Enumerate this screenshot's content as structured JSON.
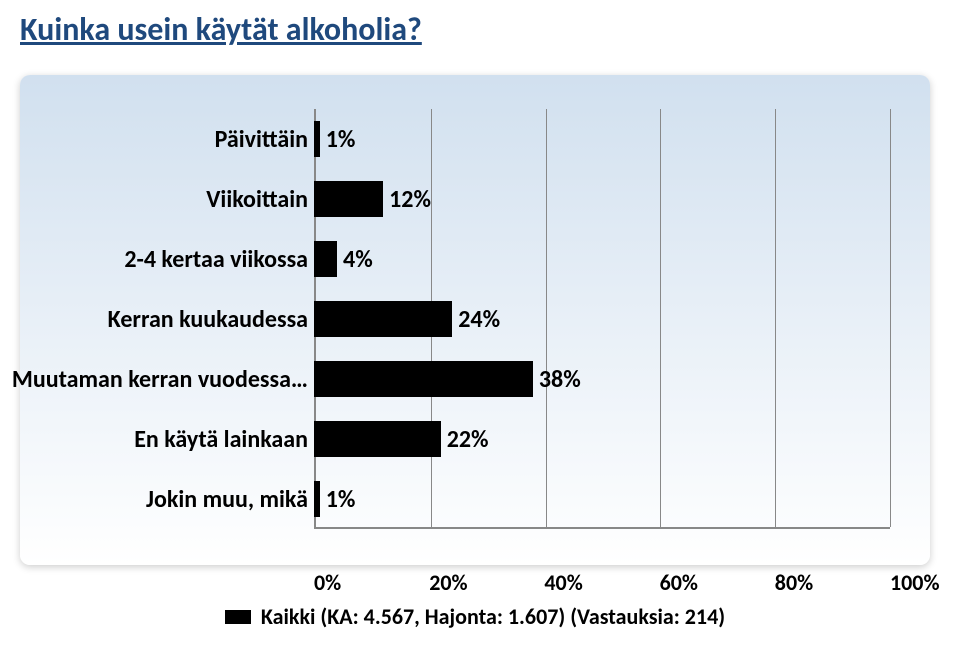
{
  "title": "Kuinka usein käytät alkoholia?",
  "chart": {
    "type": "bar",
    "orientation": "horizontal",
    "panel_gradient_top": "#d1e0ef",
    "panel_gradient_bottom": "#ffffff",
    "title_color": "#1f497d",
    "text_color": "#000000",
    "bar_color": "#000000",
    "grid_color": "#888888",
    "font_family": "Calibri",
    "label_fontsize_pt": 18,
    "xlim": [
      0,
      100
    ],
    "xtick_step": 20,
    "xticks": [
      "0%",
      "20%",
      "40%",
      "60%",
      "80%",
      "100%"
    ],
    "categories": [
      "Päivittäin",
      "Viikoittain",
      "2-4 kertaa viikossa",
      "Kerran kuukaudessa",
      "Muutaman kerran vuodessa…",
      "En käytä lainkaan",
      "Jokin muu, mikä"
    ],
    "values": [
      1,
      12,
      4,
      24,
      38,
      22,
      1
    ],
    "value_labels": [
      "1%",
      "12%",
      "4%",
      "24%",
      "38%",
      "22%",
      "1%"
    ]
  },
  "legend": {
    "swatch_color": "#000000",
    "text": "Kaikki (KA: 4.567, Hajonta: 1.607) (Vastauksia: 214)"
  }
}
